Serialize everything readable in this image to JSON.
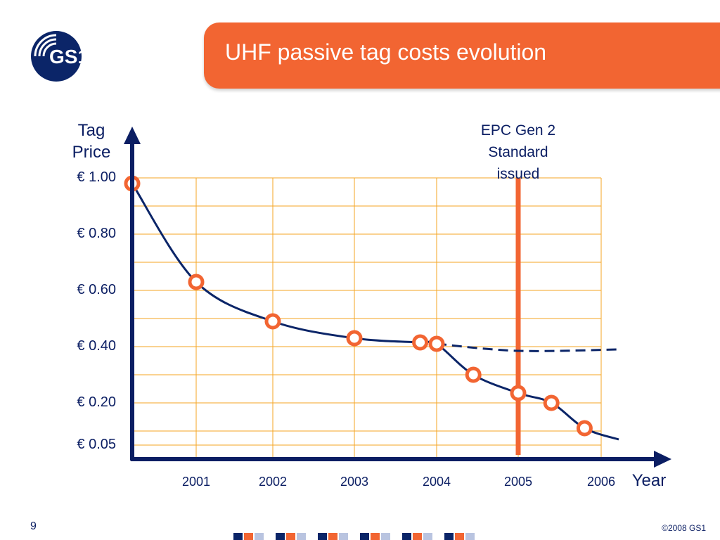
{
  "header": {
    "title": "UHF passive tag costs evolution",
    "accent_color": "#f26532",
    "logo_text": "GS1"
  },
  "chart_data": {
    "type": "line",
    "title": "UHF passive tag costs evolution",
    "ylabel": "Tag Price",
    "xlabel": "Year",
    "yticks": [
      {
        "value": 1.0,
        "label": "€ 1.00"
      },
      {
        "value": 0.8,
        "label": "€ 0.80"
      },
      {
        "value": 0.6,
        "label": "€ 0.60"
      },
      {
        "value": 0.4,
        "label": "€ 0.40"
      },
      {
        "value": 0.2,
        "label": "€ 0.20"
      },
      {
        "value": 0.05,
        "label": "€ 0.05"
      }
    ],
    "xticks": [
      {
        "value": 2001,
        "label": "2001"
      },
      {
        "value": 2002,
        "label": "2002"
      },
      {
        "value": 2003,
        "label": "2003"
      },
      {
        "value": 2004,
        "label": "2004"
      },
      {
        "value": 2005,
        "label": "2005"
      },
      {
        "value": 2006,
        "label": "2006"
      }
    ],
    "xlim": [
      2000.1,
      2006.2
    ],
    "ylim": [
      0.0,
      1.0
    ],
    "grid": true,
    "series": [
      {
        "style": "solid",
        "points": [
          [
            2000.1,
            0.98
          ],
          [
            2001,
            0.63
          ],
          [
            2002,
            0.49
          ],
          [
            2003,
            0.43
          ],
          [
            2003.8,
            0.415
          ],
          [
            2004,
            0.41
          ],
          [
            2004.45,
            0.3
          ],
          [
            2005,
            0.235
          ],
          [
            2005.4,
            0.2
          ],
          [
            2005.8,
            0.11
          ]
        ],
        "curve_end": [
          2006.2,
          0.07
        ]
      },
      {
        "style": "dashed",
        "points": [
          [
            2004,
            0.41
          ],
          [
            2005,
            0.385
          ],
          [
            2006.2,
            0.39
          ]
        ]
      }
    ],
    "markers": [
      [
        2000.1,
        0.98
      ],
      [
        2001,
        0.63
      ],
      [
        2002,
        0.49
      ],
      [
        2003,
        0.43
      ],
      [
        2003.8,
        0.415
      ],
      [
        2004,
        0.41
      ],
      [
        2004.45,
        0.3
      ],
      [
        2005,
        0.235
      ],
      [
        2005.4,
        0.2
      ],
      [
        2005.8,
        0.11
      ]
    ],
    "annotation": {
      "text_lines": [
        "EPC Gen 2",
        "Standard",
        "issued"
      ],
      "x": 2005
    },
    "colors": {
      "axis": "#0b1e63",
      "line": "#0b2568",
      "grid": "#f5a623",
      "marker": "#f26532",
      "annotation_line": "#f26532"
    }
  },
  "footer": {
    "page_number": "9",
    "copyright": "©2008 GS1"
  }
}
